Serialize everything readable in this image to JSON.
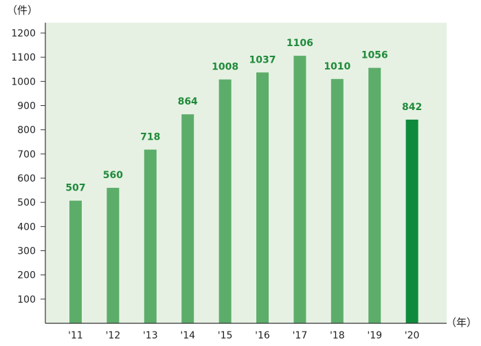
{
  "chart_data": {
    "type": "bar",
    "y_unit": "（件）",
    "x_unit": "（年）",
    "categories": [
      "'11",
      "'12",
      "'13",
      "'14",
      "'15",
      "'16",
      "'17",
      "'18",
      "'19",
      "'20"
    ],
    "values": [
      507,
      560,
      718,
      864,
      1008,
      1037,
      1106,
      1010,
      1056,
      842
    ],
    "value_labels": [
      "507",
      "560",
      "718",
      "864",
      "1008",
      "1037",
      "1106",
      "1010",
      "1056",
      "842"
    ],
    "ylim": [
      0,
      1200
    ],
    "yticks": [
      100,
      200,
      300,
      400,
      500,
      600,
      700,
      800,
      900,
      1000,
      1100,
      1200
    ],
    "grid": false,
    "colors": {
      "plot_background": "#e6f1e3",
      "bar": "#5dad6a",
      "bar_highlight": "#0e8a3c",
      "value_label": "#1f8a3a",
      "axis": "#333333"
    },
    "highlight_index": 9
  }
}
